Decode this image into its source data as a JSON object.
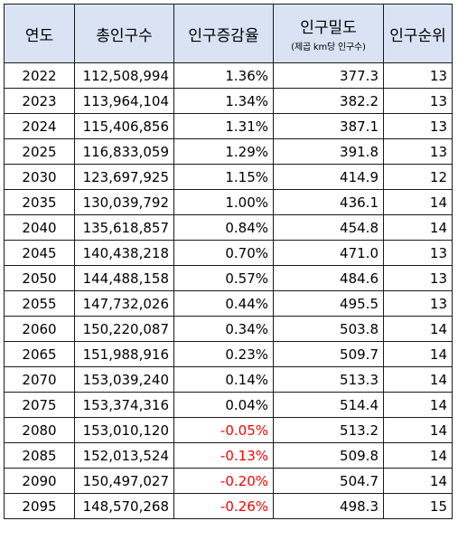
{
  "table": {
    "headers": [
      "연도",
      "총인구수",
      "인구증감율",
      "인구밀도",
      "인구순위"
    ],
    "density_subheader": "(제곱 km당 인구수)",
    "negative_color": "#ff0000",
    "header_bg": "#dae3f3",
    "rows": [
      [
        "2022",
        "112,508,994",
        "1.36%",
        "377.3",
        "13"
      ],
      [
        "2023",
        "113,964,104",
        "1.34%",
        "382.2",
        "13"
      ],
      [
        "2024",
        "115,406,856",
        "1.31%",
        "387.1",
        "13"
      ],
      [
        "2025",
        "116,833,059",
        "1.29%",
        "391.8",
        "13"
      ],
      [
        "2030",
        "123,697,925",
        "1.15%",
        "414.9",
        "12"
      ],
      [
        "2035",
        "130,039,792",
        "1.00%",
        "436.1",
        "14"
      ],
      [
        "2040",
        "135,618,857",
        "0.84%",
        "454.8",
        "14"
      ],
      [
        "2045",
        "140,438,218",
        "0.70%",
        "471.0",
        "13"
      ],
      [
        "2050",
        "144,488,158",
        "0.57%",
        "484.6",
        "13"
      ],
      [
        "2055",
        "147,732,026",
        "0.44%",
        "495.5",
        "13"
      ],
      [
        "2060",
        "150,220,087",
        "0.34%",
        "503.8",
        "14"
      ],
      [
        "2065",
        "151,988,916",
        "0.23%",
        "509.7",
        "14"
      ],
      [
        "2070",
        "153,039,240",
        "0.14%",
        "513.3",
        "14"
      ],
      [
        "2075",
        "153,374,316",
        "0.04%",
        "514.4",
        "14"
      ],
      [
        "2080",
        "153,010,120",
        "-0.05%",
        "513.2",
        "14"
      ],
      [
        "2085",
        "152,013,524",
        "-0.13%",
        "509.8",
        "14"
      ],
      [
        "2090",
        "150,497,027",
        "-0.20%",
        "504.7",
        "14"
      ],
      [
        "2095",
        "148,570,268",
        "-0.26%",
        "498.3",
        "15"
      ]
    ]
  }
}
